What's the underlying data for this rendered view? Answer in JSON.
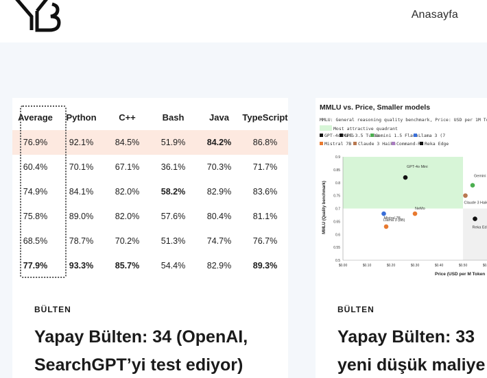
{
  "header": {
    "nav_home": "Anasayfa"
  },
  "cards": [
    {
      "category": "BÜLTEN",
      "title": "Yapay Bülten: 34 (OpenAI, SearchGPT’yi test ediyor)",
      "table": {
        "headers": [
          "Average",
          "Python",
          "C++",
          "Bash",
          "Java",
          "TypeScript"
        ],
        "rows": [
          [
            "76.9%",
            "92.1%",
            "84.5%",
            "51.9%",
            "84.2%",
            "86.8%"
          ],
          [
            "60.4%",
            "70.1%",
            "67.1%",
            "36.1%",
            "70.3%",
            "71.7%"
          ],
          [
            "74.9%",
            "84.1%",
            "82.0%",
            "58.2%",
            "82.9%",
            "83.6%"
          ],
          [
            "75.8%",
            "89.0%",
            "82.0%",
            "57.6%",
            "80.4%",
            "81.1%"
          ],
          [
            "68.5%",
            "78.7%",
            "70.2%",
            "51.3%",
            "74.7%",
            "76.7%"
          ],
          [
            "77.9%",
            "93.3%",
            "85.7%",
            "54.4%",
            "82.9%",
            "89.3%"
          ]
        ],
        "highlight_row": 0,
        "highlight_color": "#fde9e0"
      }
    },
    {
      "category": "BÜLTEN",
      "title_line1": "Yapay Bülten: 33",
      "title_line2": "yeni düşük maliye"
    }
  ],
  "chart_data": {
    "type": "scatter",
    "title": "MMLU vs. Price, Smaller models",
    "subtitle": "MMLU: General reasoning quality benchmark, Price: USD per 1M To",
    "quadrant_label": "Most attractive quadrant",
    "legend": [
      "GPT-4o Mini",
      "GPT-3.5 Turbo",
      "Gemini 1.5 Flash",
      "Llama 3 (7",
      "Mistral 7B",
      "Claude 3 Haiku",
      "Command-R",
      "Reka Edge"
    ],
    "xlabel": "Price (USD per M Token",
    "ylabel": "MMLU (Quality benchmark)",
    "xticks": [
      "$0.00",
      "$0.10",
      "$0.20",
      "$0.30",
      "$0.40",
      "$0.50",
      "$0.60"
    ],
    "yticks": [
      "0.5",
      "0.55",
      "0.6",
      "0.65",
      "0.7",
      "0.75",
      "0.8",
      "0.85",
      "0.9"
    ],
    "xlim": [
      0,
      0.6
    ],
    "ylim": [
      0.5,
      0.9
    ],
    "quadrant": {
      "x": [
        0,
        0.5
      ],
      "y": [
        0.7,
        0.9
      ]
    },
    "points": [
      {
        "label": "GPT-4o Mini",
        "x": 0.26,
        "y": 0.82,
        "color": "#111111"
      },
      {
        "label": "Gemini 1.5",
        "x": 0.54,
        "y": 0.79,
        "color": "#4caf50"
      },
      {
        "label": "Claude 3 Haiku",
        "x": 0.51,
        "y": 0.75,
        "color": "#b87850"
      },
      {
        "label": "NeMo",
        "x": 0.3,
        "y": 0.68,
        "color": "#e8792f"
      },
      {
        "label": "Mistral 7B",
        "x": 0.17,
        "y": 0.68,
        "color": "#3a6fd8"
      },
      {
        "label": "Llama 3 (8B)",
        "x": 0.18,
        "y": 0.63,
        "color": "#e8792f"
      },
      {
        "label": "Reka Ed",
        "x": 0.55,
        "y": 0.66,
        "color": "#111111"
      }
    ],
    "legend_colors": [
      "#111111",
      "#111111",
      "#4caf50",
      "#3a6fd8",
      "#e8792f",
      "#b87850",
      "#a97cc0",
      "#111111"
    ]
  }
}
